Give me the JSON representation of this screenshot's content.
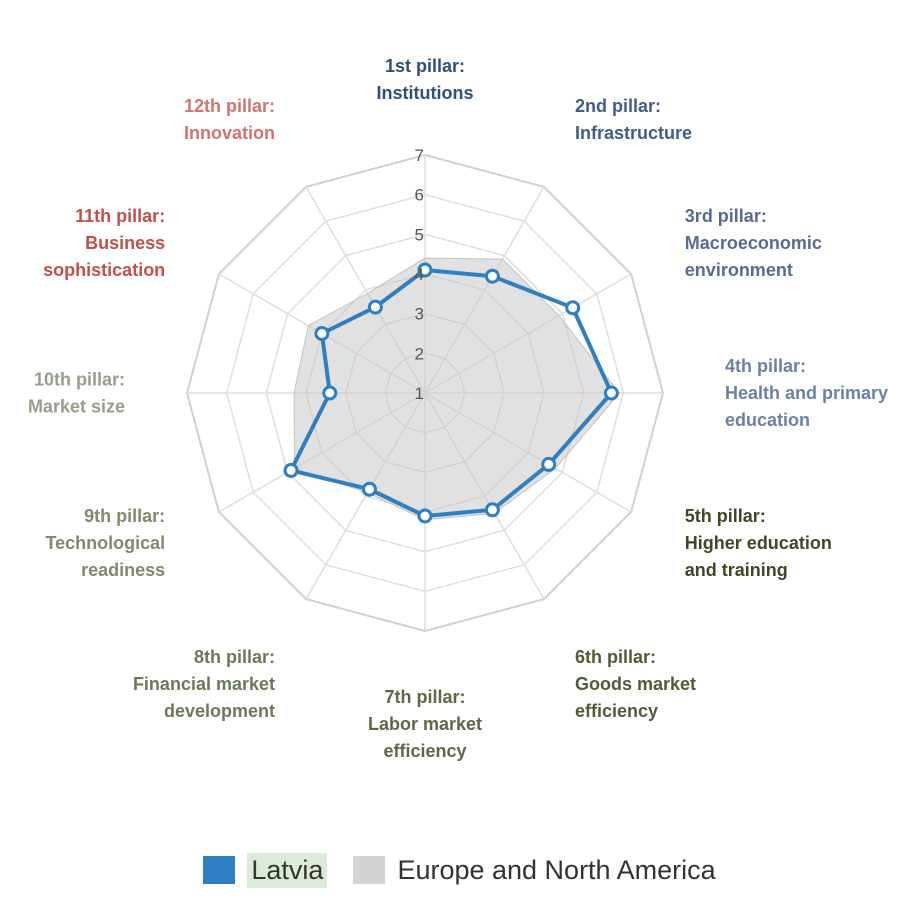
{
  "chart_data": {
    "type": "radar",
    "title": "",
    "axes": [
      {
        "line1": "1st pillar:",
        "line2": "Institutions",
        "line3": "",
        "color": "#2f4f7f"
      },
      {
        "line1": "2nd pillar:",
        "line2": "Infrastructure",
        "line3": "",
        "color": "#3f5d8a"
      },
      {
        "line1": "3rd pillar:",
        "line2": "Macroeconomic",
        "line3": "environment",
        "color": "#566c94"
      },
      {
        "line1": "4th pillar:",
        "line2": "Health and primary",
        "line3": "education",
        "color": "#6d80a3"
      },
      {
        "line1": "5th pillar:",
        "line2": "Higher education",
        "line3": "and training",
        "color": "#3c4a24"
      },
      {
        "line1": "6th pillar:",
        "line2": "Goods market",
        "line3": "efficiency",
        "color": "#4f5d35"
      },
      {
        "line1": "7th pillar:",
        "line2": "Labor market",
        "line3": "efficiency",
        "color": "#5c6a44"
      },
      {
        "line1": "8th pillar:",
        "line2": "Financial market",
        "line3": "development",
        "color": "#6b7a56"
      },
      {
        "line1": "9th pillar:",
        "line2": "Technological",
        "line3": "readiness",
        "color": "#7d8c6a"
      },
      {
        "line1": "10th pillar:",
        "line2": "Market size",
        "line3": "",
        "color": "#959f8a"
      },
      {
        "line1": "11th pillar:",
        "line2": "Business",
        "line3": "sophistication",
        "color": "#c0504d"
      },
      {
        "line1": "12th pillar:",
        "line2": "Innovation",
        "line3": "",
        "color": "#cf7470"
      }
    ],
    "ticks": [
      "1",
      "2",
      "3",
      "4",
      "5",
      "6",
      "7"
    ],
    "range": [
      1,
      7
    ],
    "series": [
      {
        "name": "Europe and North America",
        "color": "#d4d4d4",
        "values": [
          4.4,
          4.9,
          4.9,
          5.9,
          4.8,
          4.5,
          4.2,
          3.9,
          4.8,
          4.3,
          4.4,
          3.9
        ]
      },
      {
        "name": "Latvia",
        "color": "#2e7fc2",
        "values": [
          4.1,
          4.4,
          5.3,
          5.7,
          4.6,
          4.4,
          4.1,
          3.8,
          4.9,
          3.4,
          4.0,
          3.5
        ]
      }
    ],
    "legend_position": "bottom-center"
  },
  "legend": {
    "latvia_label": "Latvia",
    "europe_label": "Europe and North America",
    "latvia_color": "#2e7fc2",
    "europe_color": "#d4d4d4"
  }
}
